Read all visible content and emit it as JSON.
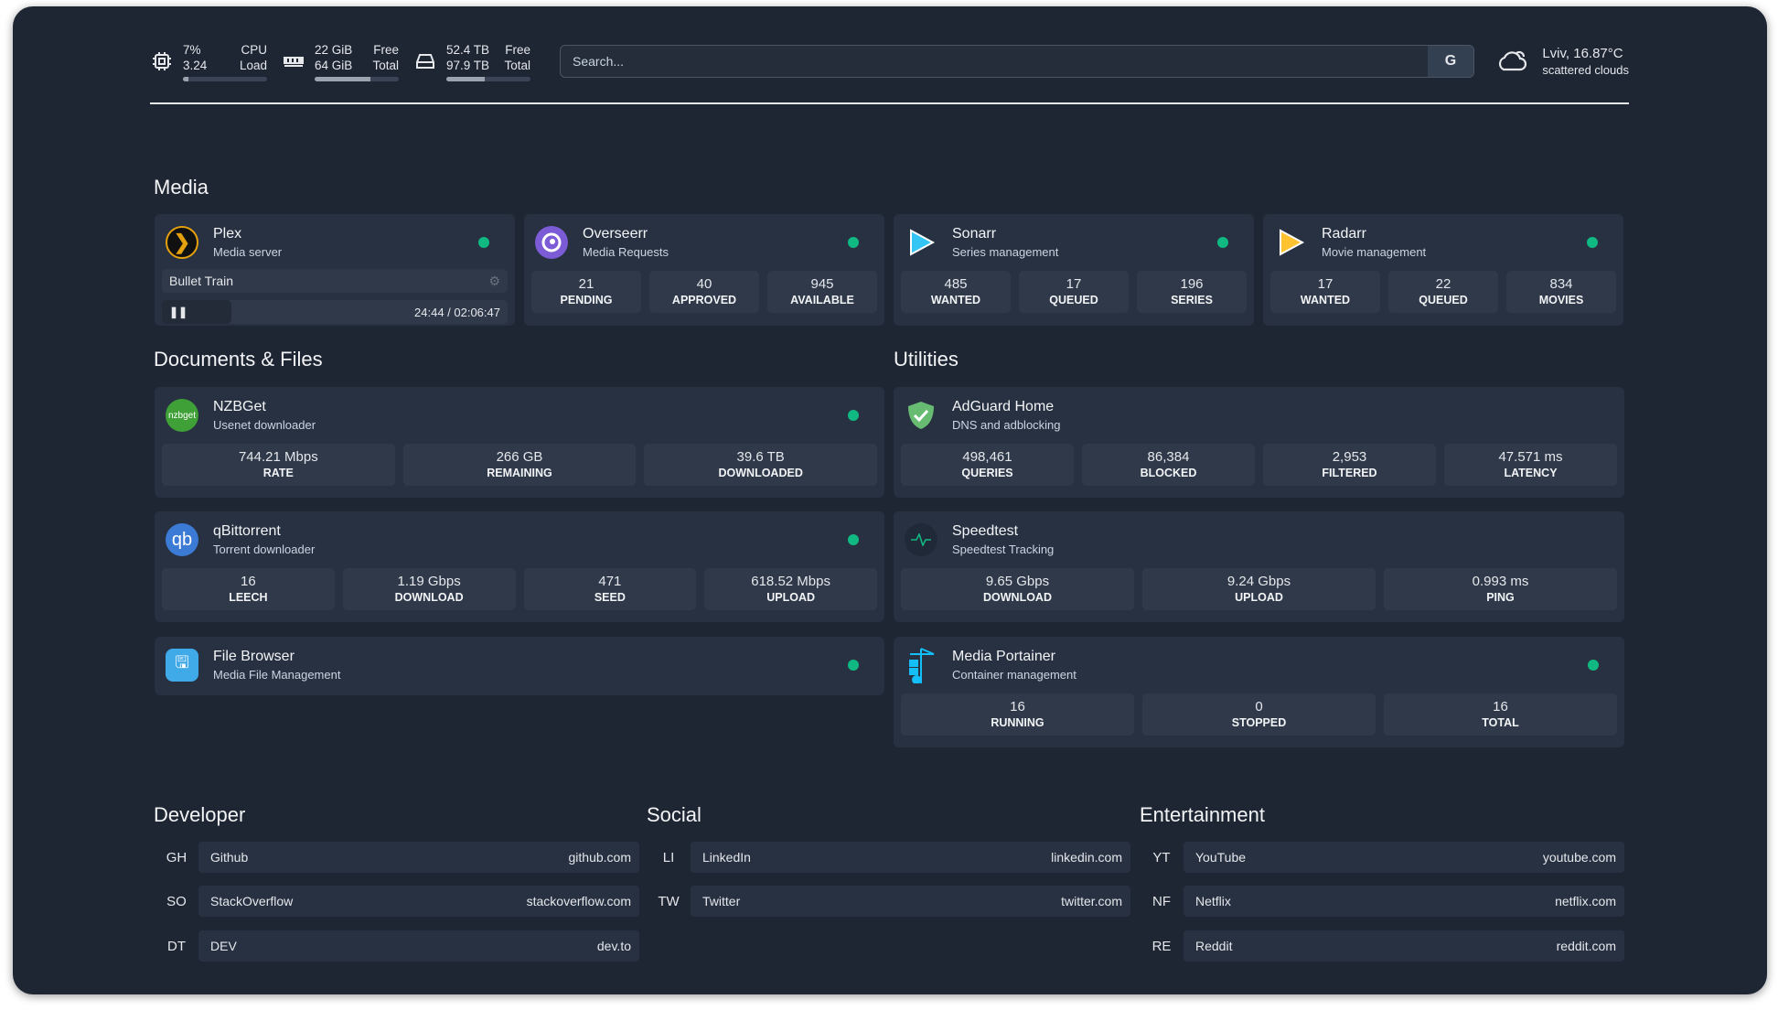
{
  "topbar": {
    "cpu": {
      "v1": "7%",
      "v2": "3.24",
      "l1": "CPU",
      "l2": "Load",
      "usage": 7
    },
    "memory": {
      "v1": "22 GiB",
      "v2": "64 GiB",
      "l1": "Free",
      "l2": "Total",
      "usage": 66
    },
    "disk": {
      "v1": "52.4 TB",
      "v2": "97.9 TB",
      "l1": "Free",
      "l2": "Total",
      "usage": 46
    },
    "search": {
      "placeholder": "Search...",
      "button": "G"
    },
    "weather": {
      "location": "Lviv, 16.87°C",
      "condition": "scattered clouds"
    }
  },
  "sections": {
    "media": "Media",
    "docs": "Documents & Files",
    "utilities": "Utilities",
    "developer": "Developer",
    "social": "Social",
    "entertainment": "Entertainment"
  },
  "media": [
    {
      "name": "Plex",
      "desc": "Media server",
      "now_playing": {
        "title": "Bullet Train",
        "time": "24:44 / 02:06:47",
        "progress": 20
      }
    },
    {
      "name": "Overseerr",
      "desc": "Media Requests",
      "stats": [
        {
          "v": "21",
          "l": "PENDING"
        },
        {
          "v": "40",
          "l": "APPROVED"
        },
        {
          "v": "945",
          "l": "AVAILABLE"
        }
      ]
    },
    {
      "name": "Sonarr",
      "desc": "Series management",
      "stats": [
        {
          "v": "485",
          "l": "WANTED"
        },
        {
          "v": "17",
          "l": "QUEUED"
        },
        {
          "v": "196",
          "l": "SERIES"
        }
      ]
    },
    {
      "name": "Radarr",
      "desc": "Movie management",
      "stats": [
        {
          "v": "17",
          "l": "WANTED"
        },
        {
          "v": "22",
          "l": "QUEUED"
        },
        {
          "v": "834",
          "l": "MOVIES"
        }
      ]
    }
  ],
  "docs": [
    {
      "name": "NZBGet",
      "desc": "Usenet downloader",
      "logo": "nzbget",
      "stats": [
        {
          "v": "744.21 Mbps",
          "l": "RATE"
        },
        {
          "v": "266 GB",
          "l": "REMAINING"
        },
        {
          "v": "39.6 TB",
          "l": "DOWNLOADED"
        }
      ]
    },
    {
      "name": "qBittorrent",
      "desc": "Torrent downloader",
      "logo": "qb",
      "stats": [
        {
          "v": "16",
          "l": "LEECH"
        },
        {
          "v": "1.19 Gbps",
          "l": "DOWNLOAD"
        },
        {
          "v": "471",
          "l": "SEED"
        },
        {
          "v": "618.52 Mbps",
          "l": "UPLOAD"
        }
      ]
    },
    {
      "name": "File Browser",
      "desc": "Media File Management"
    }
  ],
  "utilities": [
    {
      "name": "AdGuard Home",
      "desc": "DNS and adblocking",
      "stats": [
        {
          "v": "498,461",
          "l": "QUERIES"
        },
        {
          "v": "86,384",
          "l": "BLOCKED"
        },
        {
          "v": "2,953",
          "l": "FILTERED"
        },
        {
          "v": "47.571 ms",
          "l": "LATENCY"
        }
      ]
    },
    {
      "name": "Speedtest",
      "desc": "Speedtest Tracking",
      "stats": [
        {
          "v": "9.65 Gbps",
          "l": "DOWNLOAD"
        },
        {
          "v": "9.24 Gbps",
          "l": "UPLOAD"
        },
        {
          "v": "0.993 ms",
          "l": "PING"
        }
      ]
    },
    {
      "name": "Media Portainer",
      "desc": "Container management",
      "stats": [
        {
          "v": "16",
          "l": "RUNNING"
        },
        {
          "v": "0",
          "l": "STOPPED"
        },
        {
          "v": "16",
          "l": "TOTAL"
        }
      ]
    }
  ],
  "bookmarks": {
    "developer": [
      {
        "ab": "GH",
        "name": "Github",
        "url": "github.com"
      },
      {
        "ab": "SO",
        "name": "StackOverflow",
        "url": "stackoverflow.com"
      },
      {
        "ab": "DT",
        "name": "DEV",
        "url": "dev.to"
      }
    ],
    "social": [
      {
        "ab": "LI",
        "name": "LinkedIn",
        "url": "linkedin.com"
      },
      {
        "ab": "TW",
        "name": "Twitter",
        "url": "twitter.com"
      }
    ],
    "entertainment": [
      {
        "ab": "YT",
        "name": "YouTube",
        "url": "youtube.com"
      },
      {
        "ab": "NF",
        "name": "Netflix",
        "url": "netflix.com"
      },
      {
        "ab": "RE",
        "name": "Reddit",
        "url": "reddit.com"
      }
    ]
  },
  "colors": {
    "status_ok": "#10b981",
    "background": "#1e2533",
    "card": "#283142"
  }
}
